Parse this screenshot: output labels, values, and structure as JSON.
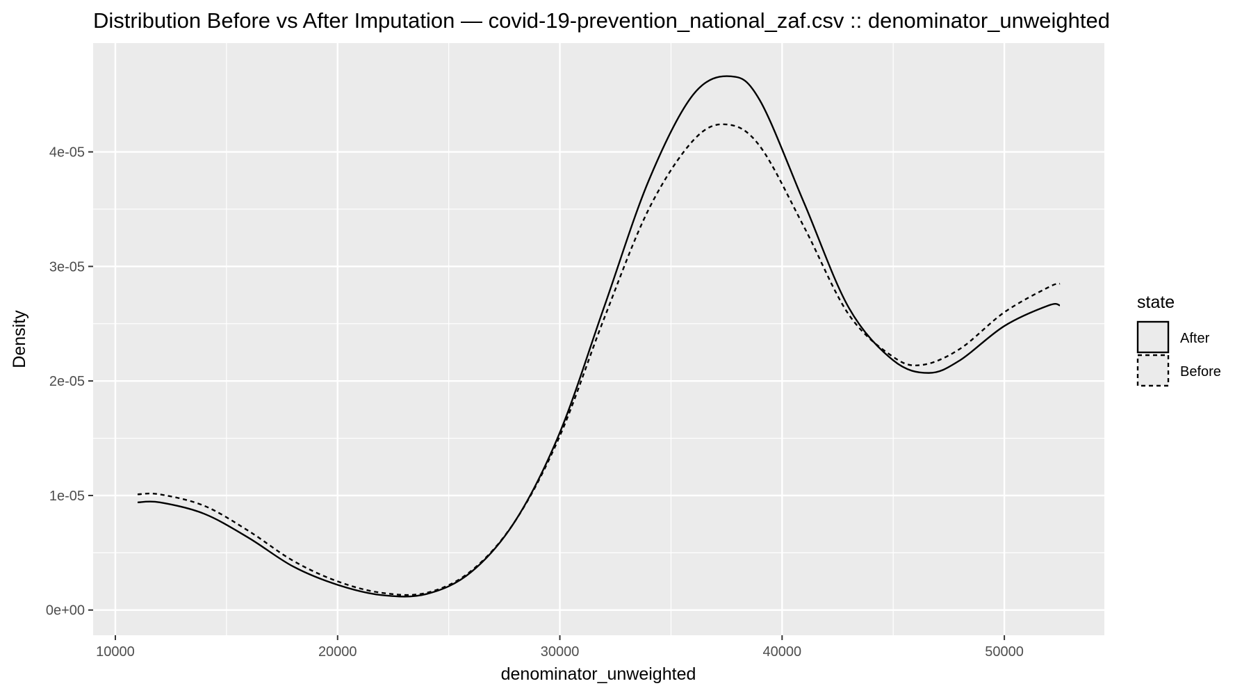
{
  "chart_data": {
    "type": "line",
    "title": "Distribution Before vs After Imputation — covid-19-prevention_national_zaf.csv :: denominator_unweighted",
    "xlabel": "denominator_unweighted",
    "ylabel": "Density",
    "xlim": [
      9000,
      54500
    ],
    "ylim": [
      -2.2e-06,
      4.95e-05
    ],
    "x_ticks": [
      10000,
      20000,
      30000,
      40000,
      50000
    ],
    "x_tick_labels": [
      "10000",
      "20000",
      "30000",
      "40000",
      "50000"
    ],
    "y_ticks": [
      0,
      1e-05,
      2e-05,
      3e-05,
      4e-05
    ],
    "y_tick_labels": [
      "0e+00",
      "1e-05",
      "2e-05",
      "3e-05",
      "4e-05"
    ],
    "grid": true,
    "legend": {
      "title": "state",
      "position": "right"
    },
    "series": [
      {
        "name": "After",
        "linetype": "solid",
        "x": [
          11000,
          12000,
          14000,
          16000,
          18000,
          20000,
          22000,
          24000,
          26000,
          28000,
          30000,
          32000,
          34000,
          36000,
          37700,
          39000,
          41000,
          43000,
          45000,
          46600,
          48000,
          50000,
          52000,
          52500
        ],
        "y": [
          9.4e-06,
          9.4e-06,
          8.4e-06,
          6.3e-06,
          3.8e-06,
          2.2e-06,
          1.3e-06,
          1.4e-06,
          3.3e-06,
          7.8e-06,
          1.55e-05,
          2.65e-05,
          3.75e-05,
          4.5e-05,
          4.66e-05,
          4.45e-05,
          3.55e-05,
          2.64e-05,
          2.18e-05,
          2.07e-05,
          2.18e-05,
          2.48e-05,
          2.66e-05,
          2.66e-05
        ]
      },
      {
        "name": "Before",
        "linetype": "dashed",
        "x": [
          11000,
          12000,
          14000,
          16000,
          18000,
          20000,
          22000,
          24000,
          26000,
          28000,
          30000,
          32000,
          34000,
          36000,
          37500,
          39000,
          41000,
          43000,
          45000,
          46300,
          48000,
          50000,
          52000,
          52500
        ],
        "y": [
          1.01e-05,
          1.01e-05,
          9.1e-06,
          6.9e-06,
          4.3e-06,
          2.5e-06,
          1.5e-06,
          1.5e-06,
          3.4e-06,
          7.8e-06,
          1.52e-05,
          2.55e-05,
          3.5e-05,
          4.1e-05,
          4.24e-05,
          4.05e-05,
          3.34e-05,
          2.58e-05,
          2.21e-05,
          2.14e-05,
          2.28e-05,
          2.6e-05,
          2.82e-05,
          2.85e-05
        ]
      }
    ]
  }
}
